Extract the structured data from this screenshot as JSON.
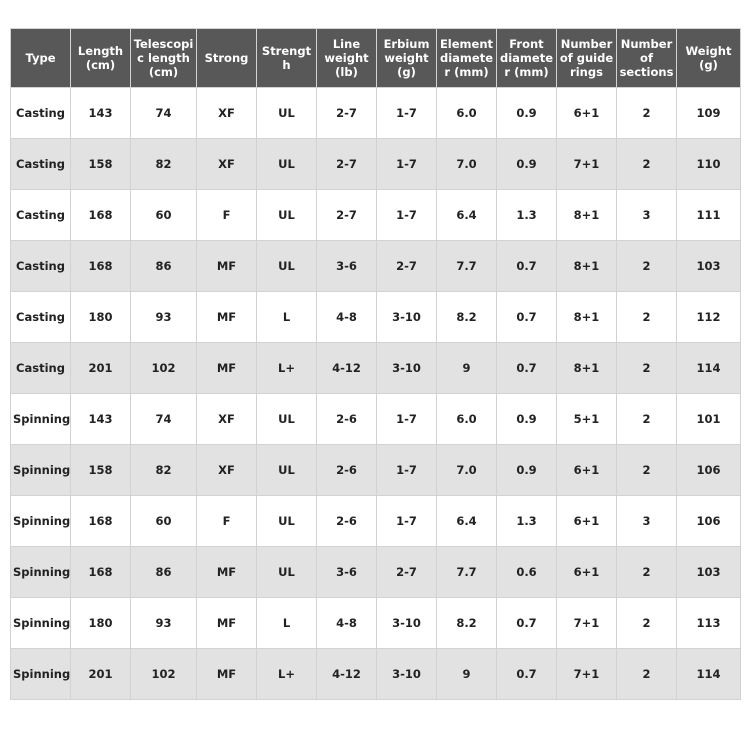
{
  "table": {
    "headers": [
      "Type",
      "Length (cm)",
      "Telescopic length (cm)",
      "Strong",
      "Strength",
      "Line weight (lb)",
      "Erbium weight (g)",
      "Element diameter (mm)",
      "Front diameter (mm)",
      "Number of guide rings",
      "Number of sections",
      "Weight (g)"
    ],
    "rows": [
      [
        "Casting",
        "143",
        "74",
        "XF",
        "UL",
        "2-7",
        "1-7",
        "6.0",
        "0.9",
        "6+1",
        "2",
        "109"
      ],
      [
        "Casting",
        "158",
        "82",
        "XF",
        "UL",
        "2-7",
        "1-7",
        "7.0",
        "0.9",
        "7+1",
        "2",
        "110"
      ],
      [
        "Casting",
        "168",
        "60",
        "F",
        "UL",
        "2-7",
        "1-7",
        "6.4",
        "1.3",
        "8+1",
        "3",
        "111"
      ],
      [
        "Casting",
        "168",
        "86",
        "MF",
        "UL",
        "3-6",
        "2-7",
        "7.7",
        "0.7",
        "8+1",
        "2",
        "103"
      ],
      [
        "Casting",
        "180",
        "93",
        "MF",
        "L",
        "4-8",
        "3-10",
        "8.2",
        "0.7",
        "8+1",
        "2",
        "112"
      ],
      [
        "Casting",
        "201",
        "102",
        "MF",
        "L+",
        "4-12",
        "3-10",
        "9",
        "0.7",
        "8+1",
        "2",
        "114"
      ],
      [
        "Spinning",
        "143",
        "74",
        "XF",
        "UL",
        "2-6",
        "1-7",
        "6.0",
        "0.9",
        "5+1",
        "2",
        "101"
      ],
      [
        "Spinning",
        "158",
        "82",
        "XF",
        "UL",
        "2-6",
        "1-7",
        "7.0",
        "0.9",
        "6+1",
        "2",
        "106"
      ],
      [
        "Spinning",
        "168",
        "60",
        "F",
        "UL",
        "2-6",
        "1-7",
        "6.4",
        "1.3",
        "6+1",
        "3",
        "106"
      ],
      [
        "Spinning",
        "168",
        "86",
        "MF",
        "UL",
        "3-6",
        "2-7",
        "7.7",
        "0.6",
        "6+1",
        "2",
        "103"
      ],
      [
        "Spinning",
        "180",
        "93",
        "MF",
        "L",
        "4-8",
        "3-10",
        "8.2",
        "0.7",
        "7+1",
        "2",
        "113"
      ],
      [
        "Spinning",
        "201",
        "102",
        "MF",
        "L+",
        "4-12",
        "3-10",
        "9",
        "0.7",
        "7+1",
        "2",
        "114"
      ]
    ]
  }
}
